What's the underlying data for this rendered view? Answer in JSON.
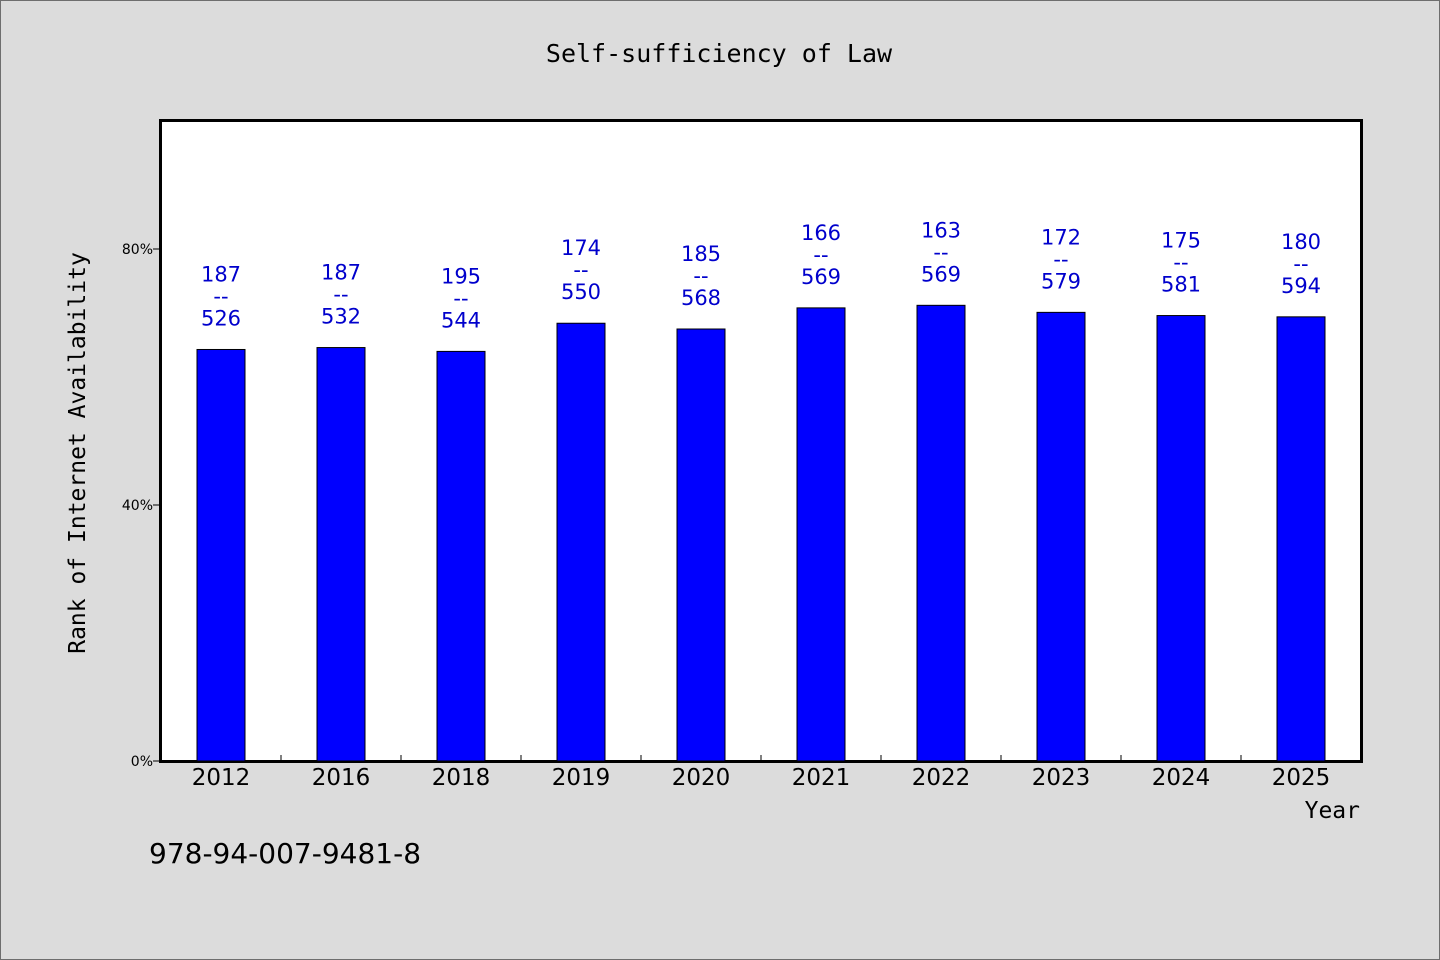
{
  "chart_data": {
    "type": "bar",
    "title": "Self-sufficiency of Law",
    "xlabel": "Year",
    "ylabel": "Rank of Internet Availability",
    "categories": [
      "2012",
      "2016",
      "2018",
      "2019",
      "2020",
      "2021",
      "2022",
      "2023",
      "2024",
      "2025"
    ],
    "values": [
      64.3,
      64.6,
      64.0,
      68.4,
      67.5,
      70.8,
      71.2,
      70.1,
      69.6,
      69.4
    ],
    "bar_labels": [
      {
        "rank": "187",
        "total": "526"
      },
      {
        "rank": "187",
        "total": "532"
      },
      {
        "rank": "195",
        "total": "544"
      },
      {
        "rank": "174",
        "total": "550"
      },
      {
        "rank": "185",
        "total": "568"
      },
      {
        "rank": "166",
        "total": "569"
      },
      {
        "rank": "163",
        "total": "569"
      },
      {
        "rank": "172",
        "total": "579"
      },
      {
        "rank": "175",
        "total": "581"
      },
      {
        "rank": "180",
        "total": "594"
      }
    ],
    "label_separator": "--",
    "yticks": [
      0,
      40,
      80
    ],
    "ytick_labels": [
      "0%",
      "40%",
      "80%"
    ],
    "ylim": [
      0,
      100
    ],
    "grid": false,
    "legend": false,
    "bar_color": "#0000ff",
    "label_color": "#0000cc"
  },
  "footer": {
    "isbn": "978-94-007-9481-8"
  }
}
